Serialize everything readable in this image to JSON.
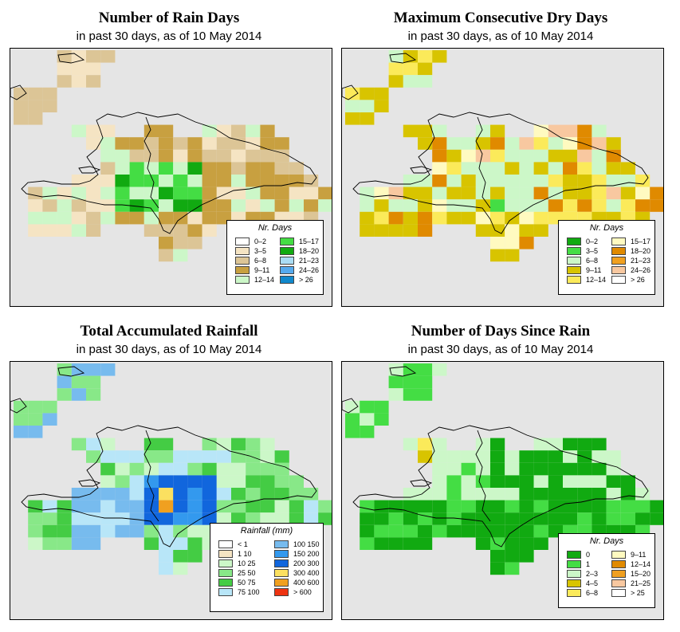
{
  "panels": [
    {
      "id": "rain_days",
      "title": "Number of Rain Days",
      "subtitle": "in past 30 days, as of  10 May 2014",
      "legend_title": "Nr. Days",
      "legend": [
        {
          "label": "0–2",
          "color": "#ffffff"
        },
        {
          "label": "3–5",
          "color": "#f5e4c3"
        },
        {
          "label": "6–8",
          "color": "#dcc596"
        },
        {
          "label": "9–11",
          "color": "#c8a040"
        },
        {
          "label": "12–14",
          "color": "#ccf7c8"
        },
        {
          "label": "15–17",
          "color": "#44dd44"
        },
        {
          "label": "18–20",
          "color": "#11aa11"
        },
        {
          "label": "21–23",
          "color": "#aaddf5"
        },
        {
          "label": "24–26",
          "color": "#55aaee"
        },
        {
          "label": "> 26",
          "color": "#1188cc"
        }
      ]
    },
    {
      "id": "dry_days",
      "title": "Maximum Consecutive Dry Days",
      "subtitle": "in past 30 days, as of  10 May 2014",
      "legend_title": "Nr. Days",
      "legend": [
        {
          "label": "0–2",
          "color": "#11aa11"
        },
        {
          "label": "3–5",
          "color": "#44dd44"
        },
        {
          "label": "6–8",
          "color": "#ccf7c8"
        },
        {
          "label": "9–11",
          "color": "#d8c400"
        },
        {
          "label": "12–14",
          "color": "#fbea5a"
        },
        {
          "label": "15–17",
          "color": "#fffac0"
        },
        {
          "label": "18–20",
          "color": "#e08a00"
        },
        {
          "label": "21–23",
          "color": "#f0a020"
        },
        {
          "label": "24–26",
          "color": "#f8c8a0"
        },
        {
          "label": "> 26",
          "color": "#ffffff"
        }
      ]
    },
    {
      "id": "rainfall",
      "title": "Total Accumulated Rainfall",
      "subtitle": "in past 30 days, as of  10 May 2014",
      "legend_title": "Rainfall (mm)",
      "legend": [
        {
          "label": "< 1",
          "color": "#ffffff"
        },
        {
          "label": "1   10",
          "color": "#f5e4c3"
        },
        {
          "label": "10   25",
          "color": "#ccf7c8"
        },
        {
          "label": "25   50",
          "color": "#88e888"
        },
        {
          "label": "50   75",
          "color": "#44cc44"
        },
        {
          "label": "75  100",
          "color": "#b8e6f8"
        },
        {
          "label": "100  150",
          "color": "#77bbee"
        },
        {
          "label": "150  200",
          "color": "#3399ee"
        },
        {
          "label": "200  300",
          "color": "#1166dd"
        },
        {
          "label": "300  400",
          "color": "#fbe060"
        },
        {
          "label": "400  600",
          "color": "#f0a020"
        },
        {
          "label": "> 600",
          "color": "#ee3311"
        }
      ]
    },
    {
      "id": "days_since_rain",
      "title": "Number of Days Since Rain",
      "subtitle": "in past 30 days, as of  10 May 2014",
      "legend_title": "Nr. Days",
      "legend": [
        {
          "label": "0",
          "color": "#11aa11"
        },
        {
          "label": "1",
          "color": "#44dd44"
        },
        {
          "label": "2–3",
          "color": "#ccf7c8"
        },
        {
          "label": "4–5",
          "color": "#d8c400"
        },
        {
          "label": "6–8",
          "color": "#fbea5a"
        },
        {
          "label": "9–11",
          "color": "#fffac0"
        },
        {
          "label": "12–14",
          "color": "#e08a00"
        },
        {
          "label": "15–20",
          "color": "#f0a020"
        },
        {
          "label": "21–25",
          "color": "#f8c8a0"
        },
        {
          "label": "> 25",
          "color": "#ffffff"
        }
      ]
    }
  ]
}
